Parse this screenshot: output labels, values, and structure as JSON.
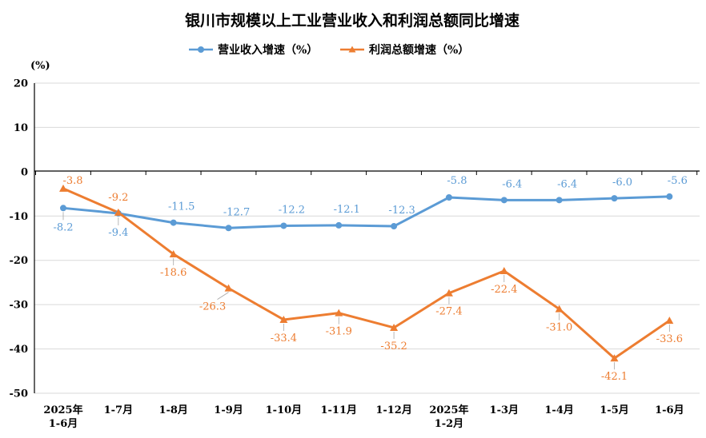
{
  "chart_data": {
    "type": "line",
    "title": "银川市规模以上工业营业收入和利润总额同比增速",
    "ylabel": "(%)",
    "ylim": [
      -50,
      20
    ],
    "yticks": [
      20,
      10,
      0,
      -10,
      -20,
      -30,
      -40,
      -50
    ],
    "grid": true,
    "legend_position": "top",
    "categories": [
      [
        "2025年",
        "1-6月"
      ],
      [
        "1-7月"
      ],
      [
        "1-8月"
      ],
      [
        "1-9月"
      ],
      [
        "1-10月"
      ],
      [
        "1-11月"
      ],
      [
        "1-12月"
      ],
      [
        "2025年",
        "1-2月"
      ],
      [
        "1-3月"
      ],
      [
        "1-4月"
      ],
      [
        "1-5月"
      ],
      [
        "1-6月"
      ]
    ],
    "series": [
      {
        "name": "营业收入增速（%）",
        "color": "#5b9bd5",
        "marker": "circle",
        "values": [
          -8.2,
          -9.4,
          -11.5,
          -12.7,
          -12.2,
          -12.1,
          -12.3,
          -5.8,
          -6.4,
          -6.4,
          -6.0,
          -5.6
        ],
        "labels": [
          "-8.2",
          "-9.4",
          "-11.5",
          "-12.7",
          "-12.2",
          "-12.1",
          "-12.3",
          "-5.8",
          "-6.4",
          "-6.4",
          "-6.0",
          "-5.6"
        ]
      },
      {
        "name": "利润总额增速（%）",
        "color": "#ed7d31",
        "marker": "triangle",
        "values": [
          -3.8,
          -9.2,
          -18.6,
          -26.3,
          -33.4,
          -31.9,
          -35.2,
          -27.4,
          -22.4,
          -31.0,
          -42.1,
          -33.6
        ],
        "labels": [
          "-3.8",
          "-9.2",
          "-18.6",
          "-26.3",
          "-33.4",
          "-31.9",
          "-35.2",
          "-27.4",
          "-22.4",
          "-31.0",
          "-42.1",
          "-33.6"
        ]
      }
    ]
  }
}
